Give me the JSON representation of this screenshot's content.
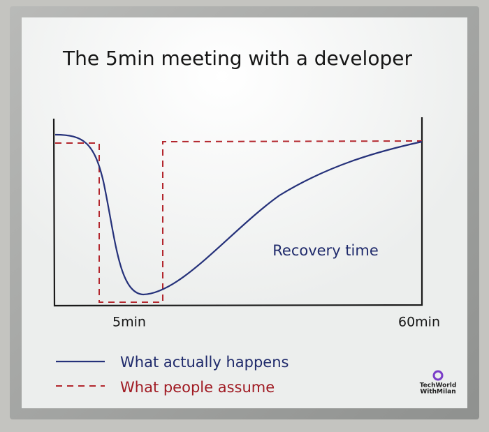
{
  "board": {
    "title": "The 5min meeting with a developer",
    "annotation": "Recovery time",
    "x_labels": [
      "5min",
      "60min"
    ],
    "legend": [
      "What actually happens",
      "What people assume"
    ],
    "watermark": [
      "TechWorld",
      "WithMilan"
    ]
  }
}
